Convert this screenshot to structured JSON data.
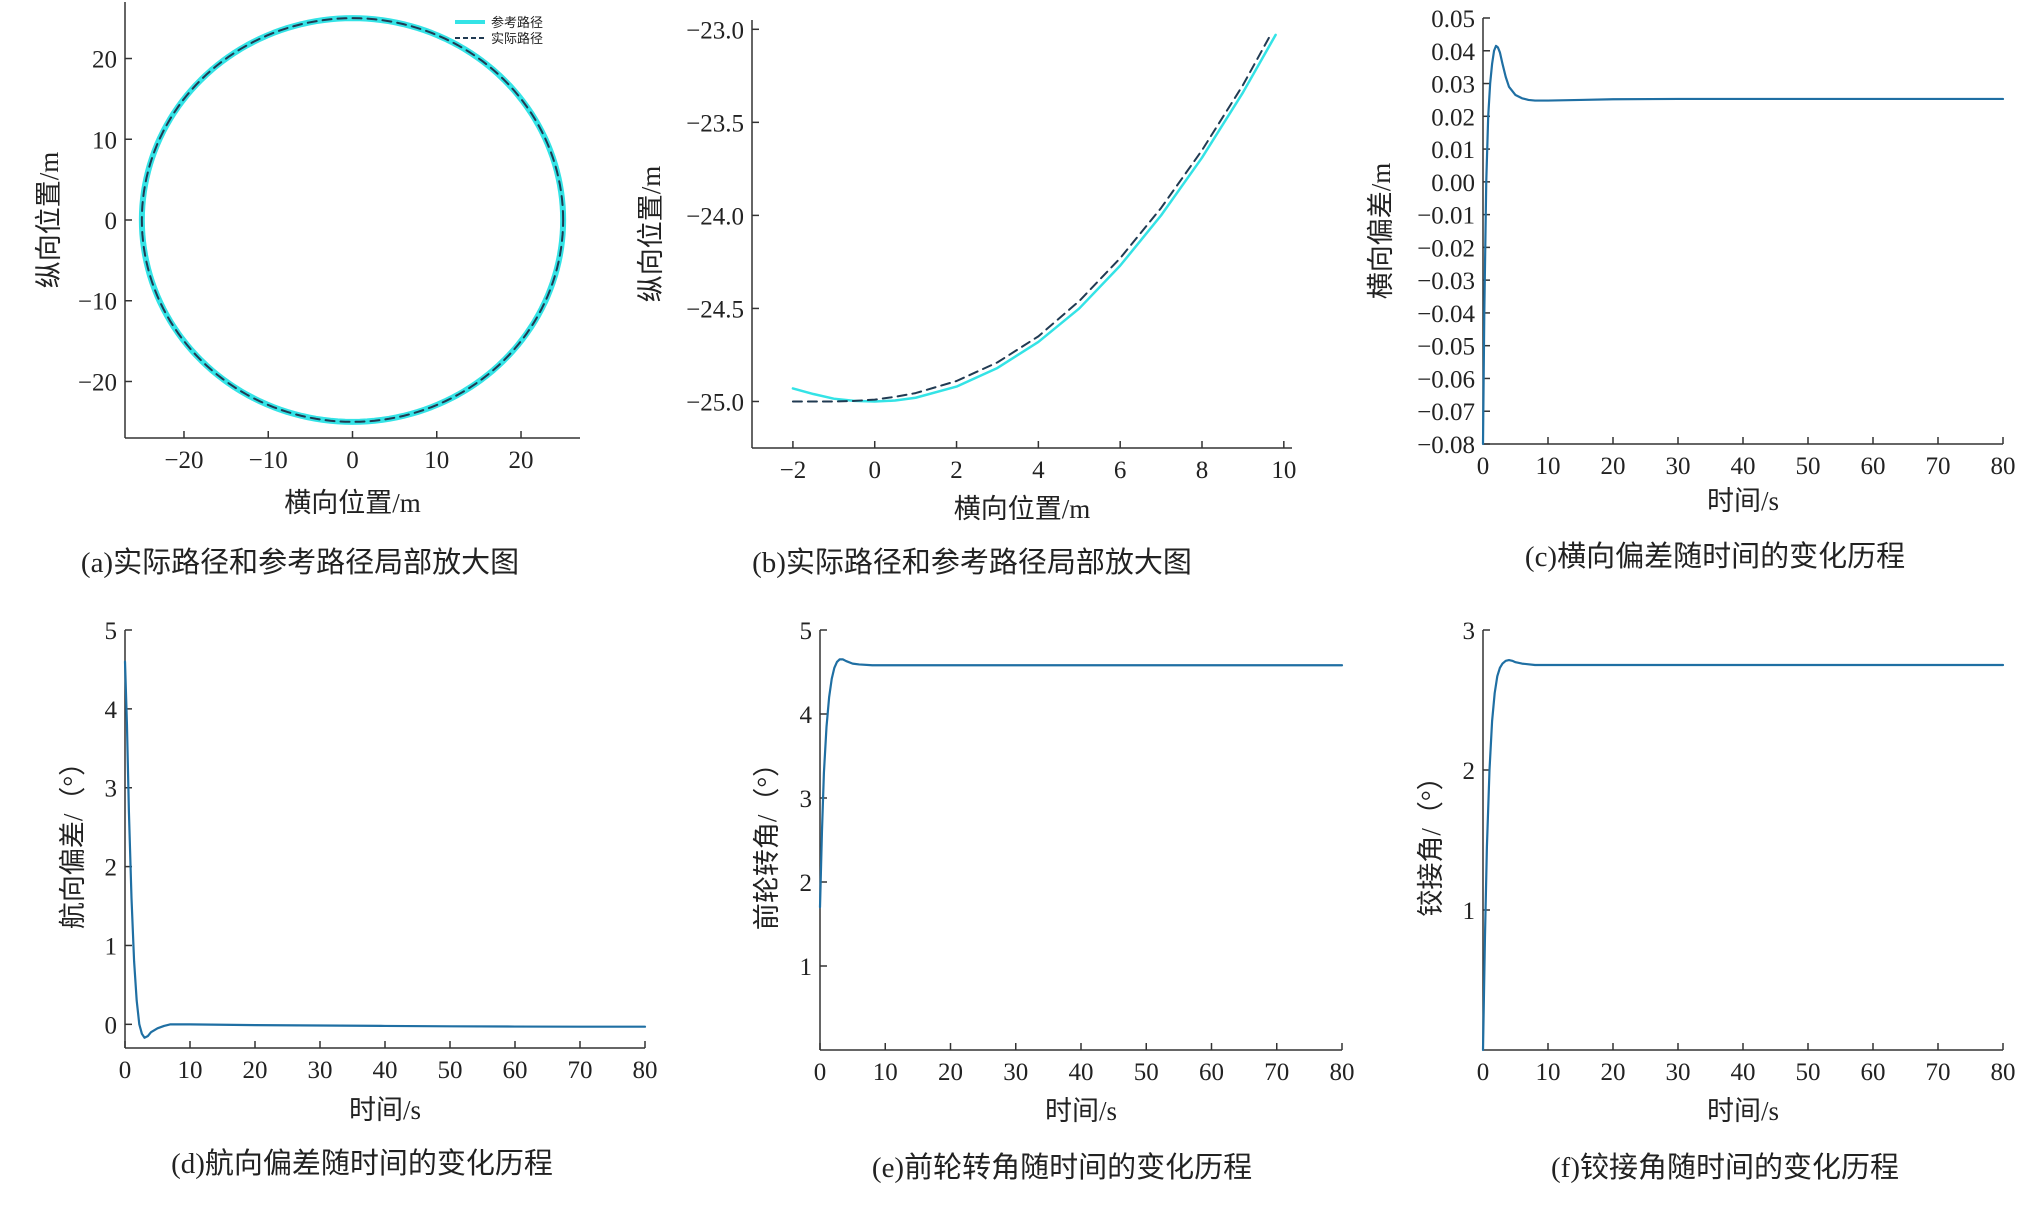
{
  "colors": {
    "reference": "#34e3e6",
    "actual": "#203a52",
    "series": "#1f6fa3",
    "axis": "#333333"
  },
  "charts": [
    {
      "id": "a",
      "type": "line",
      "caption": "(a)实际路径和参考路径局部放大图",
      "xlabel": "横向位置/m",
      "ylabel": "纵向位置/m",
      "xlim": [
        -27,
        27
      ],
      "ylim": [
        -27,
        27
      ],
      "xticks": [
        -20,
        -10,
        0,
        10,
        20
      ],
      "yticks": [
        -20,
        -10,
        0,
        10,
        20
      ],
      "legend": {
        "position": "top-right",
        "items": [
          "参考路径",
          "实际路径"
        ]
      },
      "series": [
        {
          "name": "参考路径",
          "style": "solid",
          "shape": "circle",
          "center": [
            0,
            0
          ],
          "radius": 25
        },
        {
          "name": "实际路径",
          "style": "dashed",
          "shape": "circle",
          "center": [
            0,
            0
          ],
          "radius": 25
        }
      ]
    },
    {
      "id": "b",
      "type": "line",
      "caption": "(b)实际路径和参考路径局部放大图",
      "xlabel": "横向位置/m",
      "ylabel": "纵向位置/m",
      "xlim": [
        -3,
        10.2
      ],
      "ylim": [
        -25.25,
        -22.95
      ],
      "xticks": [
        -2,
        0,
        2,
        4,
        6,
        8,
        10
      ],
      "yticks": [
        -25.0,
        -24.5,
        -24.0,
        -23.5,
        -23.0
      ],
      "ytick_decimals": 1,
      "series": [
        {
          "name": "参考路径",
          "style": "solid",
          "x": [
            -2,
            -1.5,
            -1,
            -0.5,
            0,
            0.5,
            1,
            2,
            3,
            4,
            5,
            6,
            7,
            8,
            9,
            9.8
          ],
          "y": [
            -24.93,
            -24.96,
            -24.985,
            -24.997,
            -25.0,
            -24.995,
            -24.98,
            -24.92,
            -24.82,
            -24.68,
            -24.5,
            -24.27,
            -24.0,
            -23.69,
            -23.34,
            -23.03
          ]
        },
        {
          "name": "实际路径",
          "style": "dashed",
          "x": [
            -2,
            -1.5,
            -1,
            -0.5,
            0,
            0.5,
            1,
            2,
            3,
            4,
            5,
            6,
            7,
            8,
            9,
            9.7
          ],
          "y": [
            -25.0,
            -25.0,
            -25.0,
            -24.997,
            -24.99,
            -24.975,
            -24.955,
            -24.89,
            -24.79,
            -24.65,
            -24.46,
            -24.23,
            -23.96,
            -23.65,
            -23.3,
            -23.02
          ]
        }
      ]
    },
    {
      "id": "c",
      "type": "line",
      "caption": "(c)横向偏差随时间的变化历程",
      "xlabel": "时间/s",
      "ylabel": "横向偏差/m",
      "xlim": [
        0,
        80
      ],
      "ylim": [
        -0.08,
        0.05
      ],
      "xticks": [
        0,
        10,
        20,
        30,
        40,
        50,
        60,
        70,
        80
      ],
      "yticks": [
        0.05,
        0.04,
        0.03,
        0.02,
        0.01,
        0.0,
        -0.01,
        -0.02,
        -0.03,
        -0.04,
        -0.05,
        -0.06,
        -0.07,
        -0.08
      ],
      "ytick_decimals": 2,
      "series": [
        {
          "name": "",
          "x": [
            0,
            0.2,
            0.5,
            0.8,
            1.1,
            1.4,
            1.7,
            2.0,
            2.3,
            2.6,
            3.0,
            3.5,
            4.0,
            5.0,
            6.0,
            7.0,
            8.0,
            10,
            15,
            20,
            30,
            40,
            50,
            60,
            70,
            80
          ],
          "y": [
            -0.08,
            -0.04,
            0.0,
            0.02,
            0.03,
            0.036,
            0.04,
            0.0415,
            0.041,
            0.0395,
            0.036,
            0.032,
            0.029,
            0.0265,
            0.0255,
            0.025,
            0.0248,
            0.0248,
            0.025,
            0.0252,
            0.0253,
            0.0253,
            0.0253,
            0.0253,
            0.0253,
            0.0253
          ]
        }
      ]
    },
    {
      "id": "d",
      "type": "line",
      "caption": "(d)航向偏差随时间的变化历程",
      "xlabel": "时间/s",
      "ylabel": "航向偏差/（°）",
      "xlim": [
        0,
        80
      ],
      "ylim": [
        -0.3,
        5
      ],
      "xticks": [
        0,
        10,
        20,
        30,
        40,
        50,
        60,
        70,
        80
      ],
      "yticks": [
        0,
        1,
        2,
        3,
        4,
        5
      ],
      "ytick_decimals": 0,
      "series": [
        {
          "name": "",
          "x": [
            0,
            0.3,
            0.6,
            1.0,
            1.4,
            1.8,
            2.2,
            2.6,
            3.0,
            3.5,
            4.0,
            5.0,
            6.0,
            7.0,
            8.0,
            10,
            15,
            20,
            30,
            40,
            50,
            60,
            70,
            80
          ],
          "y": [
            4.6,
            3.8,
            2.7,
            1.6,
            0.8,
            0.3,
            0.0,
            -0.12,
            -0.17,
            -0.15,
            -0.1,
            -0.05,
            -0.02,
            0.0,
            0.0,
            0.0,
            -0.005,
            -0.01,
            -0.015,
            -0.02,
            -0.025,
            -0.028,
            -0.03,
            -0.03
          ]
        }
      ]
    },
    {
      "id": "e",
      "type": "line",
      "caption": "(e)前轮转角随时间的变化历程",
      "xlabel": "时间/s",
      "ylabel": "前轮转角/（°）",
      "xlim": [
        0,
        80
      ],
      "ylim": [
        0,
        5
      ],
      "xticks": [
        0,
        10,
        20,
        30,
        40,
        50,
        60,
        70,
        80
      ],
      "yticks": [
        1,
        2,
        3,
        4,
        5
      ],
      "ytick_decimals": 0,
      "series": [
        {
          "name": "",
          "x": [
            0,
            0.3,
            0.6,
            1.0,
            1.4,
            1.8,
            2.2,
            2.6,
            3.0,
            3.5,
            4.0,
            5.0,
            6.0,
            8.0,
            10,
            20,
            40,
            60,
            80
          ],
          "y": [
            1.7,
            2.6,
            3.3,
            3.85,
            4.2,
            4.42,
            4.55,
            4.62,
            4.65,
            4.65,
            4.63,
            4.6,
            4.59,
            4.58,
            4.58,
            4.58,
            4.58,
            4.58,
            4.58
          ]
        }
      ]
    },
    {
      "id": "f",
      "type": "line",
      "caption": "(f)铰接角随时间的变化历程",
      "xlabel": "时间/s",
      "ylabel": "铰接角/（°）",
      "xlim": [
        0,
        80
      ],
      "ylim": [
        0,
        3
      ],
      "xticks": [
        0,
        10,
        20,
        30,
        40,
        50,
        60,
        70,
        80
      ],
      "yticks": [
        1,
        2,
        3
      ],
      "ytick_decimals": 0,
      "series": [
        {
          "name": "",
          "x": [
            0,
            0.3,
            0.6,
            1.0,
            1.4,
            1.8,
            2.2,
            2.6,
            3.0,
            3.5,
            4.0,
            4.5,
            5.0,
            6.0,
            8.0,
            10,
            20,
            40,
            60,
            80
          ],
          "y": [
            0.0,
            0.8,
            1.45,
            2.0,
            2.35,
            2.55,
            2.67,
            2.73,
            2.76,
            2.78,
            2.785,
            2.78,
            2.77,
            2.76,
            2.75,
            2.75,
            2.75,
            2.75,
            2.75,
            2.75
          ]
        }
      ]
    }
  ]
}
